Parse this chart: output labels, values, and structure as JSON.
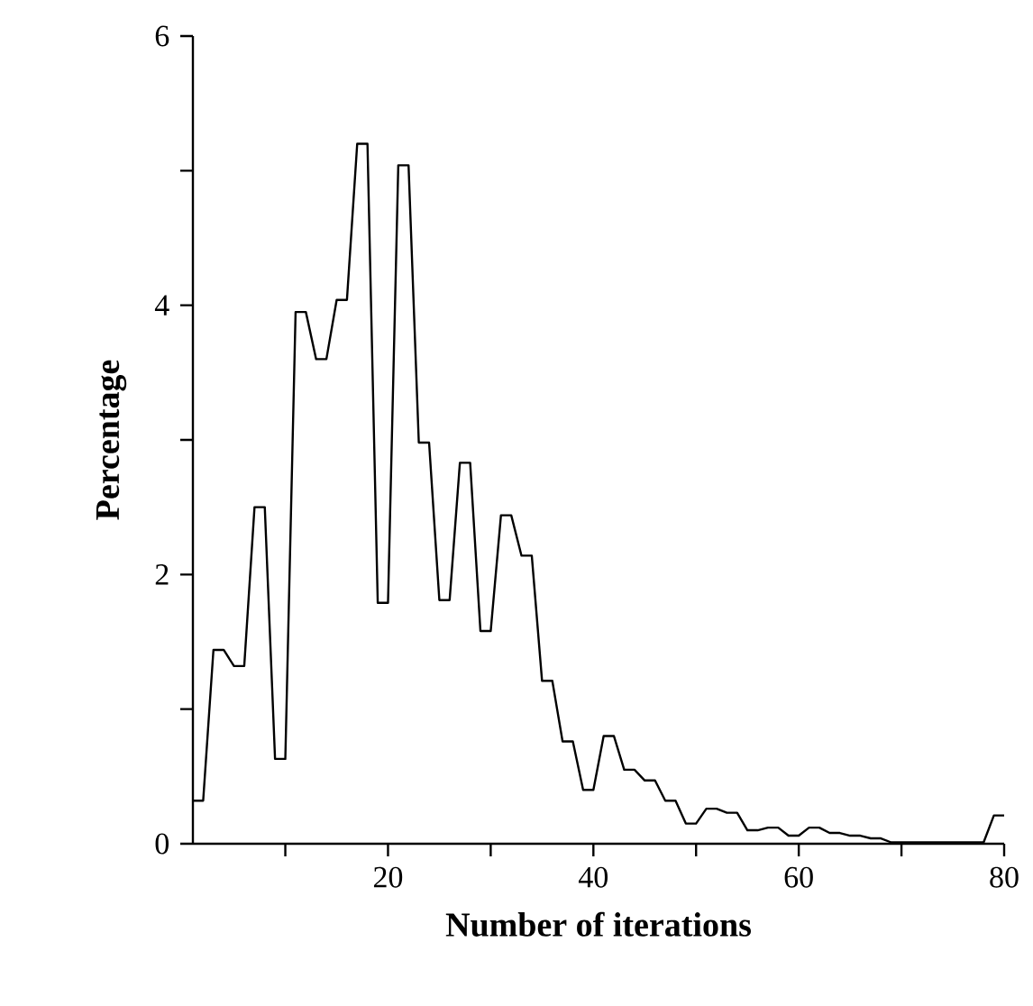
{
  "chart_data": {
    "type": "line",
    "xlabel": "Number of iterations",
    "ylabel": "Percentage",
    "x": [
      1,
      2,
      3,
      4,
      5,
      6,
      7,
      8,
      9,
      10,
      11,
      12,
      13,
      14,
      15,
      16,
      17,
      18,
      19,
      20,
      21,
      22,
      23,
      24,
      25,
      26,
      27,
      28,
      29,
      30,
      31,
      32,
      33,
      34,
      35,
      36,
      37,
      38,
      39,
      40,
      41,
      42,
      43,
      44,
      45,
      46,
      47,
      48,
      49,
      50,
      51,
      52,
      53,
      54,
      55,
      56,
      57,
      58,
      59,
      60,
      61,
      62,
      63,
      64,
      65,
      66,
      67,
      68,
      69,
      70,
      71,
      72,
      73,
      74,
      75,
      76,
      77,
      78,
      79,
      80
    ],
    "series": [
      {
        "color": "#000000",
        "values": [
          0.32,
          0.32,
          1.44,
          1.44,
          1.32,
          1.32,
          2.5,
          2.5,
          0.63,
          0.63,
          3.95,
          3.95,
          3.6,
          3.6,
          4.04,
          4.04,
          5.2,
          5.2,
          1.79,
          1.79,
          5.04,
          5.04,
          2.98,
          2.98,
          1.81,
          1.81,
          2.83,
          2.83,
          1.58,
          1.58,
          2.44,
          2.44,
          2.14,
          2.14,
          1.21,
          1.21,
          0.76,
          0.76,
          0.4,
          0.4,
          0.8,
          0.8,
          0.55,
          0.55,
          0.47,
          0.47,
          0.32,
          0.32,
          0.15,
          0.15,
          0.26,
          0.26,
          0.23,
          0.23,
          0.1,
          0.1,
          0.12,
          0.12,
          0.06,
          0.06,
          0.12,
          0.12,
          0.08,
          0.08,
          0.06,
          0.06,
          0.04,
          0.04,
          0.01,
          0.01,
          0.01,
          0.01,
          0.01,
          0.01,
          0.01,
          0.01,
          0.01,
          0.01,
          0.21,
          0.21
        ]
      }
    ],
    "xlim": [
      1,
      80
    ],
    "ylim": [
      0,
      6
    ],
    "xticks": [
      {
        "value": 10,
        "label": null
      },
      20,
      {
        "value": 30,
        "label": null
      },
      40,
      {
        "value": 50,
        "label": null
      },
      60,
      {
        "value": 70,
        "label": null
      },
      80
    ],
    "yticks": [
      0,
      {
        "value": 1,
        "label": null
      },
      2,
      {
        "value": 3,
        "label": null
      },
      4,
      {
        "value": 5,
        "label": null
      },
      6
    ],
    "marker": "none",
    "line_style": "solid"
  }
}
